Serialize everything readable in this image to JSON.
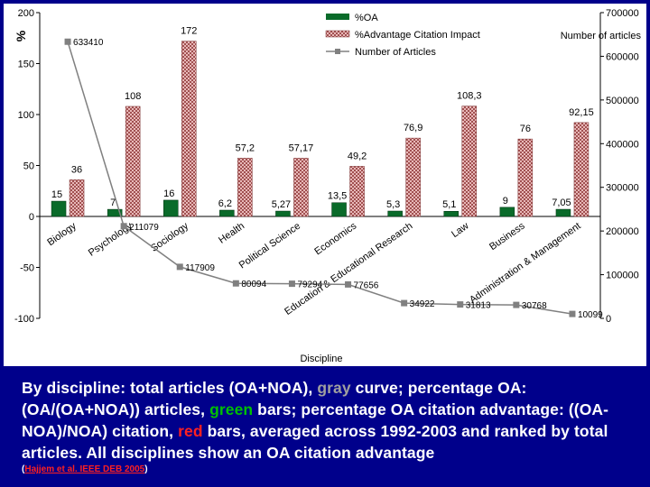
{
  "chart_data": {
    "type": "bar",
    "categories": [
      "Biology",
      "Psychology",
      "Sociology",
      "Health",
      "Political Science",
      "Economics",
      "Education & Educational Research",
      "Law",
      "Business",
      "Administration & Management"
    ],
    "series": [
      {
        "name": "%OA",
        "axis": "left",
        "values": [
          15,
          7,
          16,
          6.2,
          5.27,
          13.5,
          5.3,
          5.1,
          9,
          7.05
        ],
        "labels": [
          "15",
          "7",
          "16",
          "6,2",
          "5,27",
          "13,5",
          "5,3",
          "5,1",
          "9",
          "7,05"
        ],
        "color": "#0a6b2a"
      },
      {
        "name": "%Advantage Citation Impact",
        "axis": "left",
        "values": [
          36,
          108,
          172,
          57.2,
          57.17,
          49.2,
          76.9,
          108.3,
          76,
          92.15
        ],
        "labels": [
          "36",
          "108",
          "172",
          "57,2",
          "57,17",
          "49,2",
          "76,9",
          "108,3",
          "76",
          "92,15"
        ],
        "color": "#c88080"
      },
      {
        "name": "Number of Articles",
        "axis": "right",
        "values": [
          633410,
          211079,
          117909,
          80094,
          79294,
          77656,
          34922,
          31813,
          30768,
          10099
        ],
        "labels": [
          "633410",
          "211079",
          "117909",
          "80094",
          "79294",
          "77656",
          "34922",
          "31813",
          "30768",
          "10099"
        ],
        "color": "#808080"
      }
    ],
    "ylim_left": [
      -100,
      200
    ],
    "yticks_left": [
      -100,
      -50,
      0,
      50,
      100,
      150,
      200
    ],
    "ytick_labels_left": [
      "-100",
      "-50",
      "0",
      "50",
      "100",
      "150",
      "200"
    ],
    "ylim_right": [
      0,
      700000
    ],
    "yticks_right": [
      0,
      100000,
      200000,
      300000,
      400000,
      500000,
      600000,
      700000
    ],
    "ytick_labels_right": [
      "0",
      "100000",
      "200000",
      "300000",
      "400000",
      "500000",
      "600000",
      "700000"
    ],
    "ylabel_left": "%",
    "ylabel_right": "Number of articles",
    "xlabel": "Discipline",
    "legend_position": "top-center",
    "grid": false
  },
  "caption": {
    "part1": "By discipline: total articles (OA+NOA), ",
    "gray_word": "gray",
    "part2": " curve; percentage OA: (OA/(OA+NOA)) articles, ",
    "green_word": "green",
    "part3": " bars; percentage OA citation advantage: ((OA-NOA)/NOA) citation, ",
    "red_word": "red",
    "part4": " bars, averaged across 1992-2003 and ranked by total articles. All disciplines show an OA citation advantage"
  },
  "citation": {
    "open": "(",
    "link": "Hajjem et al. IEEE DEB 2005",
    "close": ")"
  }
}
